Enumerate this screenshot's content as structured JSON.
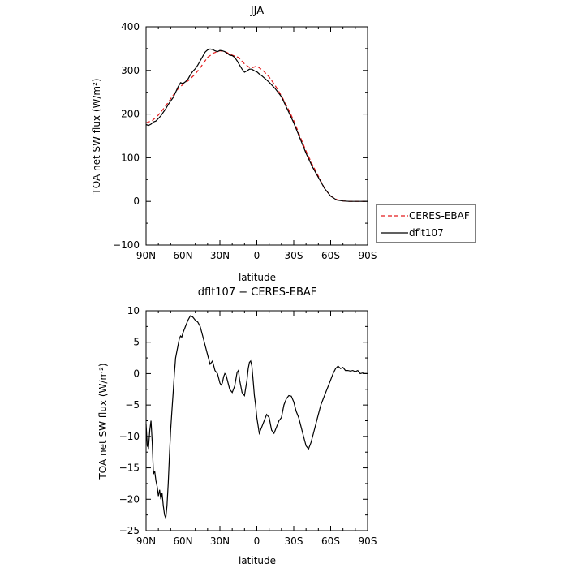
{
  "chart_data": [
    {
      "type": "line",
      "title": "JJA",
      "xlabel": "latitude",
      "ylabel": "TOA net SW flux (W/m²)",
      "xlim": [
        90,
        -90
      ],
      "ylim": [
        -100,
        400
      ],
      "x_ticks": [
        90,
        60,
        30,
        0,
        -30,
        -60,
        -90
      ],
      "x_tick_labels": [
        "90N",
        "60N",
        "30N",
        "0",
        "30S",
        "60S",
        "90S"
      ],
      "y_ticks": [
        -100,
        0,
        100,
        200,
        300,
        400
      ],
      "y_tick_labels": [
        "−100",
        "0",
        "100",
        "200",
        "300",
        "400"
      ],
      "grid": false,
      "legend": "outside-right",
      "series": [
        {
          "name": "CERES-EBAF",
          "color": "#e41a1c",
          "dash": "dashed",
          "x": [
            90,
            85,
            80,
            75,
            70,
            65,
            60,
            55,
            50,
            45,
            40,
            35,
            30,
            25,
            20,
            15,
            10,
            5,
            2,
            0,
            -5,
            -10,
            -15,
            -20,
            -25,
            -30,
            -35,
            -40,
            -45,
            -50,
            -55,
            -60,
            -65,
            -70,
            -75,
            -80,
            -85,
            -90
          ],
          "y": [
            180,
            185,
            198,
            215,
            235,
            255,
            268,
            278,
            292,
            310,
            330,
            340,
            345,
            342,
            335,
            330,
            315,
            305,
            308,
            310,
            300,
            285,
            265,
            242,
            215,
            185,
            150,
            115,
            85,
            58,
            30,
            12,
            4,
            1,
            0,
            0,
            0,
            0
          ]
        },
        {
          "name": "dflt107",
          "color": "#000000",
          "dash": "solid",
          "x": [
            90,
            88,
            86,
            84,
            82,
            80,
            78,
            76,
            74,
            72,
            70,
            68,
            66,
            64,
            62,
            60,
            58,
            56,
            54,
            52,
            50,
            48,
            46,
            44,
            42,
            40,
            38,
            36,
            34,
            32,
            30,
            28,
            26,
            24,
            22,
            20,
            18,
            16,
            14,
            12,
            10,
            8,
            6,
            4,
            2,
            0,
            -2,
            -4,
            -6,
            -8,
            -10,
            -15,
            -20,
            -25,
            -30,
            -35,
            -40,
            -45,
            -50,
            -55,
            -60,
            -65,
            -70,
            -75,
            -80,
            -85,
            -90
          ],
          "y": [
            176,
            174,
            177,
            182,
            184,
            190,
            196,
            204,
            212,
            222,
            230,
            238,
            250,
            262,
            272,
            270,
            274,
            280,
            290,
            298,
            304,
            312,
            322,
            332,
            342,
            347,
            349,
            348,
            345,
            343,
            346,
            345,
            343,
            339,
            335,
            334,
            330,
            322,
            312,
            303,
            296,
            299,
            303,
            303,
            299,
            297,
            292,
            288,
            283,
            278,
            273,
            258,
            240,
            210,
            180,
            145,
            110,
            80,
            55,
            30,
            12,
            3,
            1,
            0,
            0,
            0,
            0
          ]
        }
      ]
    },
    {
      "type": "line",
      "title": "dflt107 − CERES-EBAF",
      "xlabel": "latitude",
      "ylabel": "TOA net SW flux (W/m²)",
      "xlim": [
        90,
        -90
      ],
      "ylim": [
        -25,
        10
      ],
      "x_ticks": [
        90,
        60,
        30,
        0,
        -30,
        -60,
        -90
      ],
      "x_tick_labels": [
        "90N",
        "60N",
        "30N",
        "0",
        "30S",
        "60S",
        "90S"
      ],
      "y_ticks": [
        -25,
        -20,
        -15,
        -10,
        -5,
        0,
        5,
        10
      ],
      "y_tick_labels": [
        "−25",
        "−20",
        "−15",
        "−10",
        "−5",
        "0",
        "5",
        "10"
      ],
      "grid": false,
      "series": [
        {
          "name": "",
          "color": "#000000",
          "dash": "solid",
          "x": [
            90,
            89,
            88,
            87,
            86,
            85,
            84,
            83,
            82,
            81,
            80,
            79,
            78,
            77,
            76,
            75,
            74,
            73,
            72,
            71,
            70,
            69,
            68,
            67,
            66,
            65,
            64,
            63,
            62,
            61,
            60,
            58,
            56,
            54,
            52,
            50,
            48,
            46,
            44,
            42,
            40,
            38,
            36,
            34,
            32,
            30,
            29,
            28,
            27,
            26,
            25,
            24,
            22,
            20,
            18,
            16,
            15,
            14,
            12,
            10,
            8,
            7,
            6,
            5,
            4,
            3,
            2,
            1,
            0,
            -2,
            -4,
            -6,
            -8,
            -10,
            -12,
            -14,
            -16,
            -18,
            -20,
            -22,
            -24,
            -26,
            -28,
            -30,
            -32,
            -34,
            -36,
            -38,
            -40,
            -42,
            -44,
            -46,
            -48,
            -50,
            -52,
            -54,
            -56,
            -58,
            -60,
            -62,
            -64,
            -66,
            -68,
            -70,
            -72,
            -74,
            -76,
            -78,
            -80,
            -82,
            -84,
            -86,
            -88,
            -90
          ],
          "y": [
            -8,
            -11.5,
            -11.8,
            -9,
            -7.5,
            -11,
            -16,
            -15.5,
            -17,
            -18,
            -19.5,
            -18.5,
            -20,
            -19,
            -21,
            -22.5,
            -23,
            -21,
            -17.5,
            -13,
            -9,
            -6,
            -3,
            0,
            2.5,
            3.5,
            4.5,
            5.5,
            6,
            5.8,
            6.5,
            7.5,
            8.5,
            9.2,
            9,
            8.5,
            8.2,
            7.5,
            6,
            4.5,
            3,
            1.5,
            2,
            0.5,
            0,
            -1.5,
            -1.8,
            -1.5,
            -0.5,
            0,
            -0.2,
            -1,
            -2.5,
            -3,
            -2,
            0.2,
            0.5,
            -1,
            -3,
            -3.5,
            -1,
            0.8,
            1.8,
            2,
            1.2,
            -1,
            -3.5,
            -5,
            -7,
            -9.5,
            -8.5,
            -7.5,
            -6.5,
            -7,
            -9,
            -9.5,
            -8.5,
            -7.5,
            -7,
            -5,
            -4,
            -3.5,
            -3.6,
            -4.5,
            -6,
            -7,
            -8.5,
            -10,
            -11.5,
            -12,
            -11,
            -9.5,
            -8,
            -6.5,
            -5,
            -4,
            -3,
            -2,
            -1,
            0,
            0.8,
            1.2,
            0.8,
            1,
            0.5,
            0.5,
            0.4,
            0.5,
            0.3,
            0.5,
            0,
            0.1,
            0,
            0
          ]
        }
      ]
    }
  ]
}
